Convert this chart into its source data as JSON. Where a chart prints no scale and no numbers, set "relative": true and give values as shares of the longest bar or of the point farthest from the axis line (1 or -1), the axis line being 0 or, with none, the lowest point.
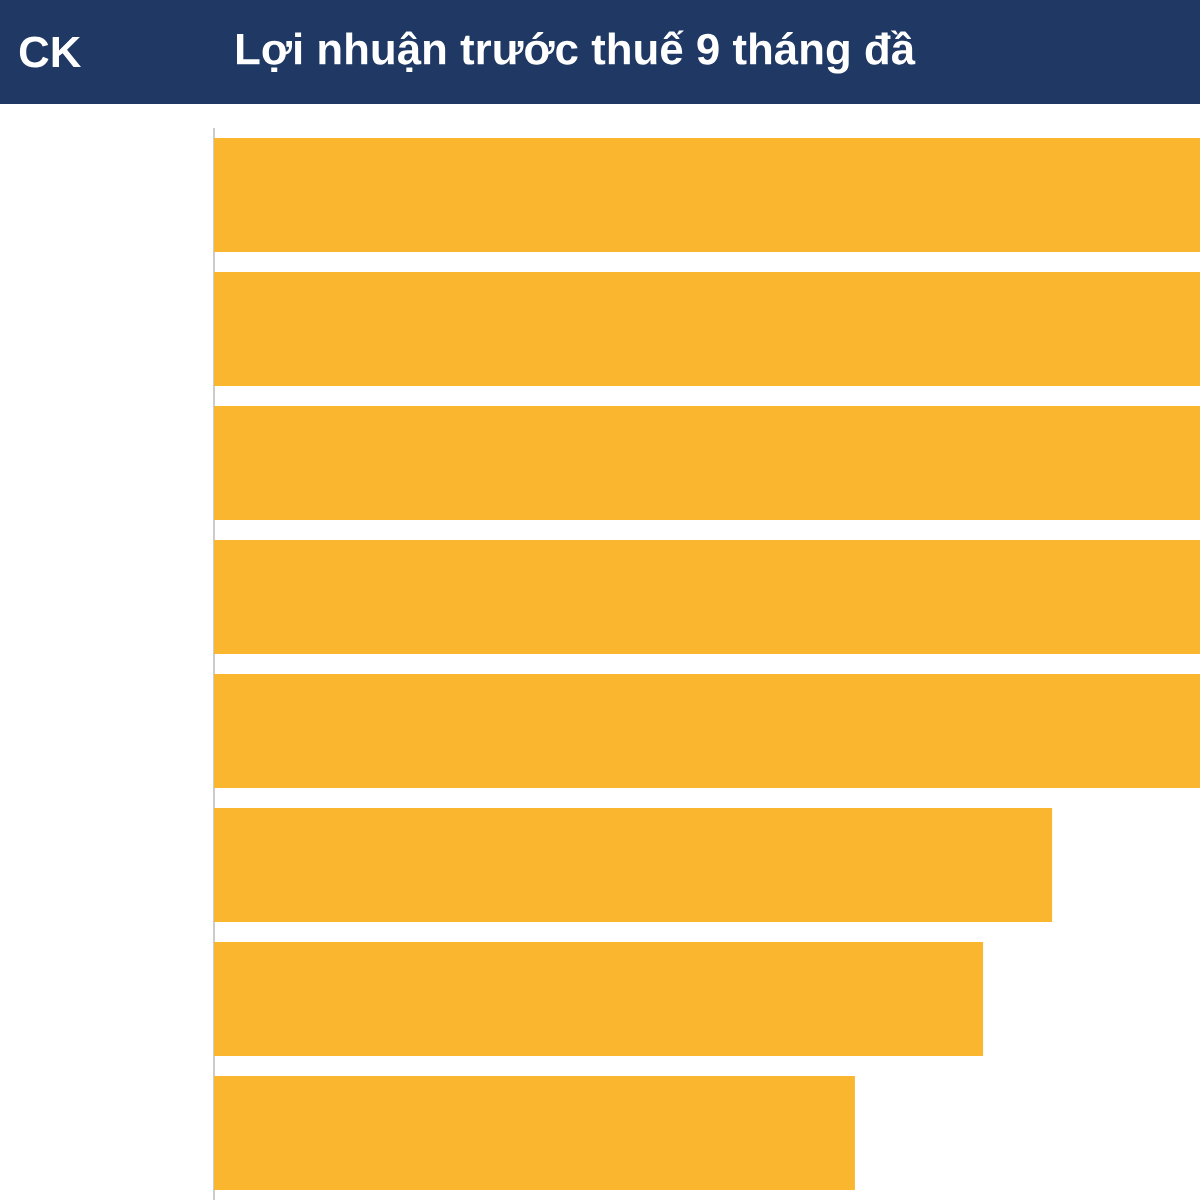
{
  "chart_data": {
    "type": "bar",
    "orientation": "horizontal",
    "relative": true,
    "title": "Lợi nhuận trước thuế 9 tháng đầ",
    "ylabel": "CK",
    "categories": [
      null,
      null,
      null,
      null,
      null,
      null,
      null,
      null
    ],
    "values": [
      1,
      1,
      1,
      1,
      1,
      0.85,
      0.78,
      0.65
    ],
    "color": "#fbb630"
  }
}
